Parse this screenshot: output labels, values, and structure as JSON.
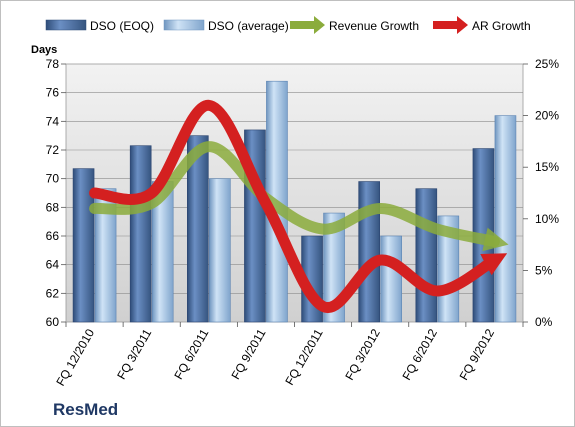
{
  "chart_data": {
    "type": "bar",
    "company": "ResMed",
    "categories": [
      "FQ 12/2010",
      "FQ 3/2011",
      "FQ 6/2011",
      "FQ 9/2011",
      "FQ 12/2011",
      "FQ 3/2012",
      "FQ 6/2012",
      "FQ 9/2012"
    ],
    "y_left": {
      "label": "Days",
      "min": 60,
      "max": 78,
      "step": 2
    },
    "y_right": {
      "min": 0,
      "max": 25,
      "step": 5,
      "unit": "%"
    },
    "series": [
      {
        "name": "DSO (EOQ)",
        "kind": "bar",
        "axis": "left",
        "color": "#4a6fa5",
        "values": [
          70.7,
          72.3,
          73.0,
          73.4,
          66.0,
          69.8,
          69.3,
          72.1
        ]
      },
      {
        "name": "DSO (average)",
        "kind": "bar",
        "axis": "left",
        "color": "#a8c8e8",
        "values": [
          69.3,
          69.8,
          70.0,
          76.8,
          67.6,
          66.0,
          67.4,
          74.4
        ]
      },
      {
        "name": "Revenue Growth",
        "kind": "line",
        "axis": "right",
        "color": "#8bac3c",
        "values": [
          11.0,
          11.5,
          17.0,
          12.0,
          9.0,
          11.0,
          9.0,
          7.8
        ]
      },
      {
        "name": "AR Growth",
        "kind": "line",
        "axis": "right",
        "color": "#d42020",
        "values": [
          12.5,
          12.5,
          21.0,
          11.5,
          1.5,
          6.0,
          3.0,
          6.0
        ]
      }
    ],
    "grid": true,
    "legend": "top"
  }
}
